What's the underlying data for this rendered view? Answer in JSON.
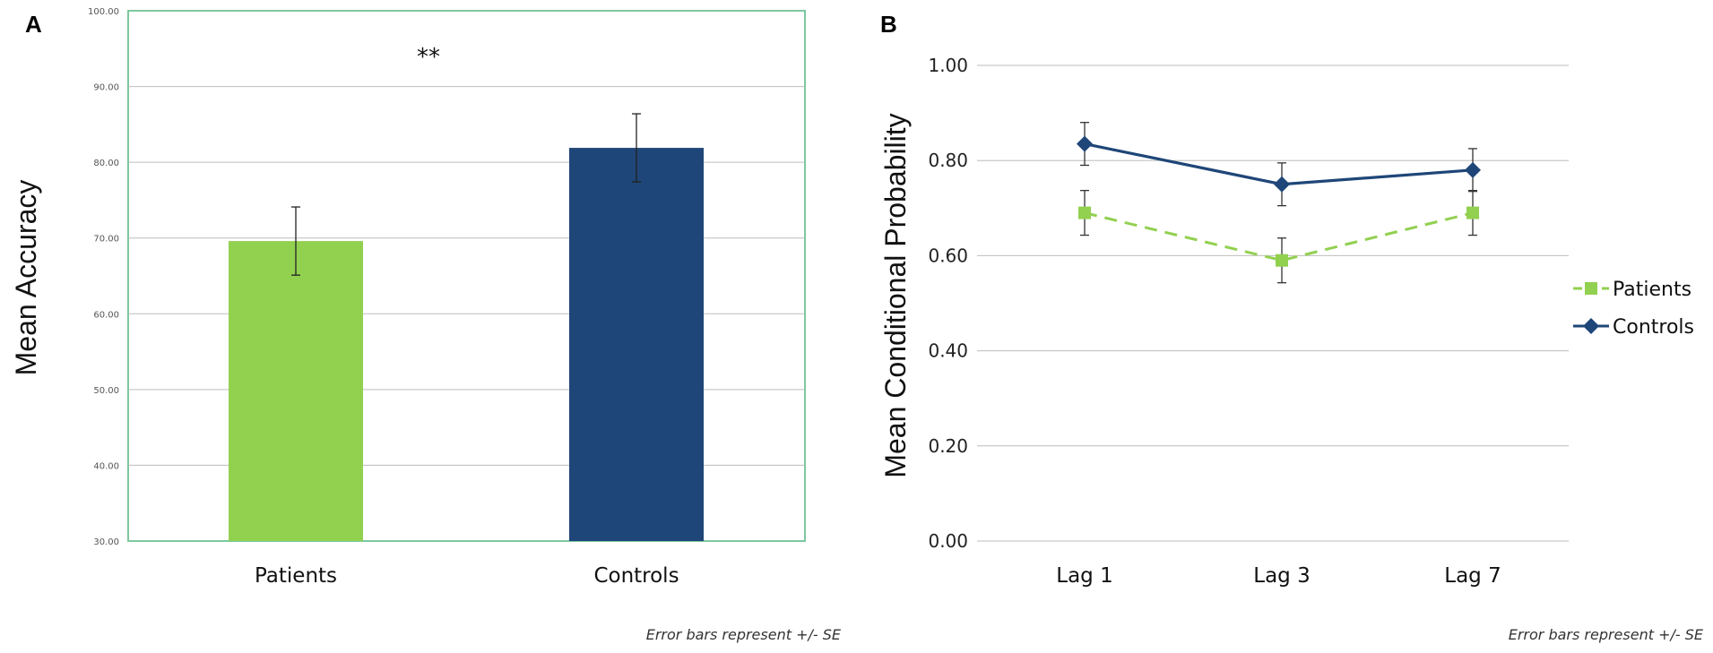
{
  "chart_data": [
    {
      "panel": "A",
      "type": "bar",
      "categories": [
        "Patients",
        "Controls"
      ],
      "values": [
        69.6,
        81.9
      ],
      "errors": [
        4.5,
        4.5
      ],
      "colors": [
        "#92d050",
        "#1f4678"
      ],
      "ylabel": "Mean Accuracy",
      "ylim": [
        30,
        100
      ],
      "yticks": [
        "30.00",
        "40.00",
        "50.00",
        "60.00",
        "70.00",
        "80.00",
        "90.00",
        "100.00"
      ],
      "ytick_values": [
        30,
        40,
        50,
        60,
        70,
        80,
        90,
        100
      ],
      "annotation": "**",
      "note": "Error bars represent +/- SE",
      "frame_color": "#7dc8a0"
    },
    {
      "panel": "B",
      "type": "line",
      "categories": [
        "Lag 1",
        "Lag 3",
        "Lag 7"
      ],
      "series": [
        {
          "name": "Patients",
          "values": [
            0.69,
            0.59,
            0.69
          ],
          "errors": [
            0.047,
            0.047,
            0.047
          ],
          "color": "#92d050",
          "dashed": true,
          "marker": "square"
        },
        {
          "name": "Controls",
          "values": [
            0.835,
            0.75,
            0.78
          ],
          "errors": [
            0.045,
            0.045,
            0.045
          ],
          "color": "#1f4678",
          "dashed": false,
          "marker": "diamond"
        }
      ],
      "ylabel": "Mean Conditional  Probability",
      "ylim": [
        0,
        1
      ],
      "yticks": [
        "0.00",
        "0.20",
        "0.40",
        "0.60",
        "0.80",
        "1.00"
      ],
      "ytick_values": [
        0,
        0.2,
        0.4,
        0.6,
        0.8,
        1.0
      ],
      "note": "Error bars represent +/- SE"
    }
  ]
}
